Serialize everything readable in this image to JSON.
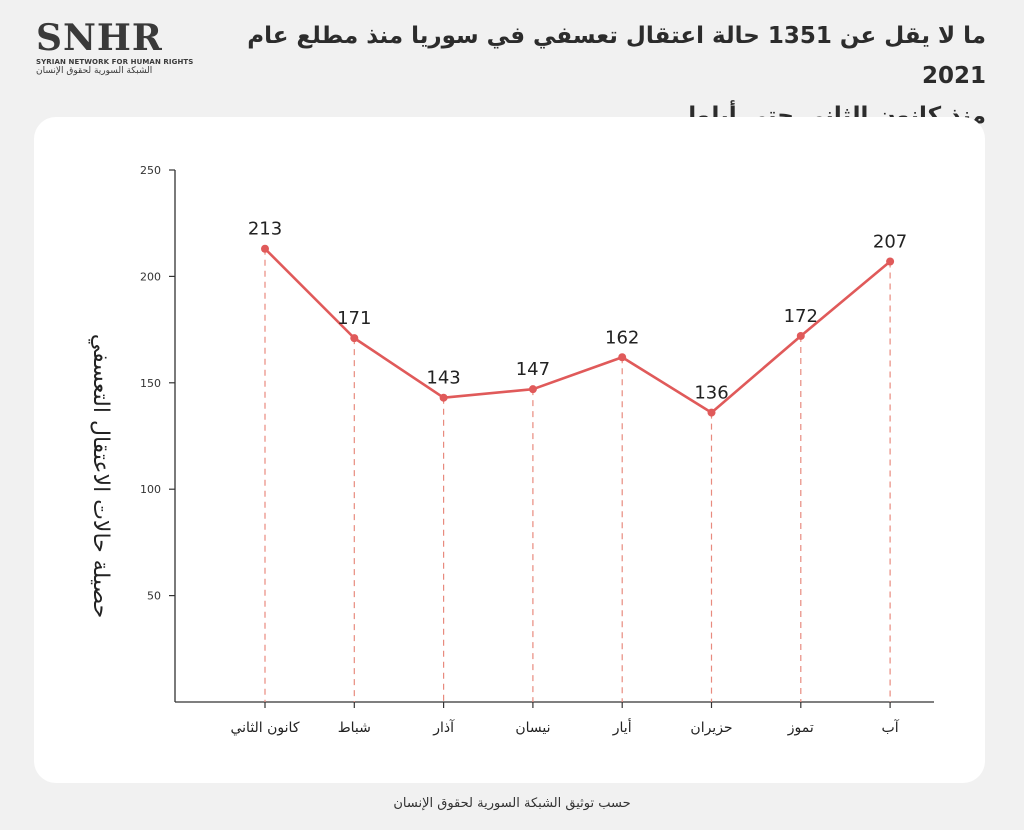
{
  "logo": {
    "mark": "SNHR",
    "english": "SYRIAN NETWORK FOR HUMAN RIGHTS",
    "arabic": "الشبكة السورية لحقوق الإنسان"
  },
  "header": {
    "title_line1": "ما لا يقل عن 1351 حالة اعتقال تعسفي في سوريا منذ مطلع عام 2021",
    "title_line2": "منذ كانون الثاني حتى أيلول"
  },
  "footer": {
    "source": "حسب توثيق الشبكة السورية لحقوق الإنسان"
  },
  "colors": {
    "line": "#e05a5a",
    "dashed": "#e88a7e",
    "axis": "#333333",
    "background": "#f1f1f1",
    "card": "#ffffff"
  },
  "chart_data": {
    "type": "line",
    "title": "ما لا يقل عن 1351 حالة اعتقال تعسفي في سوريا منذ مطلع عام 2021",
    "subtitle": "منذ كانون الثاني حتى أيلول",
    "xlabel": "",
    "ylabel": "حصيلة حالات الاعتقال التعسفي",
    "categories": [
      "كانون الثاني",
      "شباط",
      "آذار",
      "نيسان",
      "أيار",
      "حزيران",
      "تموز",
      "آب"
    ],
    "values": [
      213,
      171,
      143,
      147,
      162,
      136,
      172,
      207
    ],
    "yticks": [
      50,
      100,
      150,
      200,
      250
    ],
    "ylim": [
      0,
      250
    ],
    "grid": false,
    "legend": "none"
  }
}
